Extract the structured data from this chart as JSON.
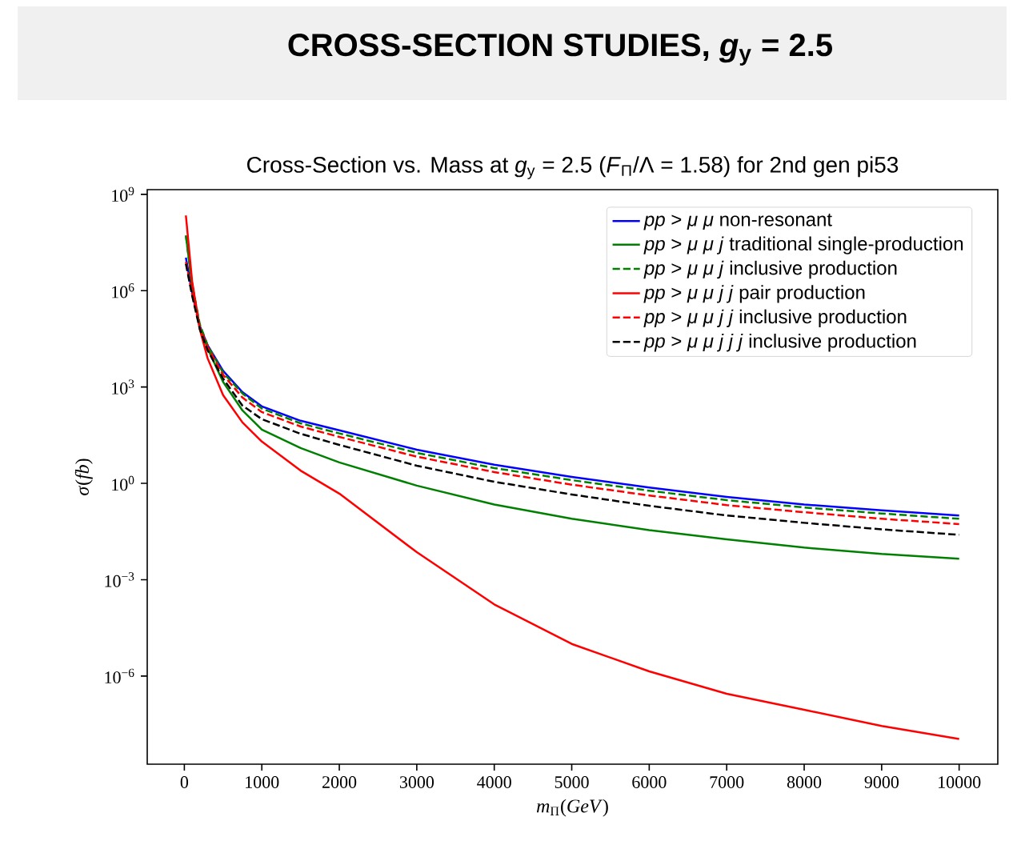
{
  "chart_data": {
    "type": "line",
    "title": "CROSS-SECTION STUDIES,   *g*$_{y}$ = 2.5",
    "subtitle": "Cross-Section vs. Mass at *g*$_{y}$ = 2.5 (*F*$_{Π}$/Λ = 1.58) for 2nd gen pi53",
    "xlabel": "*m*$_{Π}$(*GeV*)",
    "ylabel": "*σ*(*fb*)",
    "x": [
      20,
      100,
      200,
      300,
      500,
      750,
      1000,
      1500,
      2000,
      3000,
      4000,
      5000,
      6000,
      7000,
      8000,
      9000,
      10000
    ],
    "series": [
      {
        "name": "*pp* > *μ μ* non-resonant",
        "color": "#0000ff",
        "line_style": "solid",
        "values": [
          10700000.0,
          910000.0,
          79000.0,
          20000.0,
          3200.0,
          690,
          250,
          89,
          45,
          11.2,
          3.8,
          1.58,
          0.74,
          0.38,
          0.22,
          0.145,
          0.1
        ]
      },
      {
        "name": "*pp* > *μ μ j* traditional single-production",
        "color": "#008000",
        "line_style": "solid",
        "values": [
          52000000.0,
          1580000.0,
          71000.0,
          15800.0,
          1450.0,
          186,
          47,
          12.6,
          4.5,
          0.85,
          0.22,
          0.079,
          0.035,
          0.018,
          0.01,
          0.0063,
          0.0045
        ]
      },
      {
        "name": "*pp* > *μ μ j* inclusive production",
        "color": "#008000",
        "line_style": "dashed",
        "values": [
          52000000.0,
          1580000.0,
          89000.0,
          20000.0,
          2800.0,
          630,
          214,
          74,
          36,
          8.9,
          3.0,
          1.26,
          0.59,
          0.3,
          0.178,
          0.115,
          0.079
        ]
      },
      {
        "name": "*pp* > *μ μ j j* pair production",
        "color": "#ff0000",
        "line_style": "solid",
        "values": [
          220000000.0,
          2000000.0,
          63000.0,
          7900.0,
          560,
          79,
          20,
          2.5,
          0.48,
          0.0072,
          0.00017,
          1e-05,
          1.4e-06,
          2.8e-07,
          8.9e-08,
          2.8e-08,
          1.1e-08
        ]
      },
      {
        "name": "*pp* > *μ μ j j* inclusive production",
        "color": "#ff0000",
        "line_style": "dashed",
        "values": [
          7900000.0,
          790000.0,
          71000.0,
          17800.0,
          2400.0,
          470,
          166,
          59,
          28,
          6.8,
          2.24,
          0.91,
          0.42,
          0.21,
          0.126,
          0.079,
          0.054
        ]
      },
      {
        "name": "*pp* > *μ μ j j j* inclusive production",
        "color": "#000000",
        "line_style": "dashed",
        "values": [
          6800000.0,
          710000.0,
          63000.0,
          14100.0,
          1820.0,
          263,
          100,
          35,
          15.8,
          3.55,
          1.12,
          0.45,
          0.2,
          0.1,
          0.059,
          0.037,
          0.025
        ]
      }
    ],
    "xlim": [
      -479,
      10499
    ],
    "ylim": [
      1.8e-09,
      1400000000.0
    ],
    "xticks": [
      0,
      1000,
      2000,
      3000,
      4000,
      5000,
      6000,
      7000,
      8000,
      9000,
      10000
    ],
    "yticks": [
      {
        "value": 1e-06,
        "label": "10$^{−6}$"
      },
      {
        "value": 0.001,
        "label": "10$^{−3}$"
      },
      {
        "value": 1,
        "label": "10$^{0}$"
      },
      {
        "value": 1000.0,
        "label": "10$^{3}$"
      },
      {
        "value": 1000000.0,
        "label": "10$^{6}$"
      },
      {
        "value": 1000000000.0,
        "label": "10$^{9}$"
      }
    ],
    "log": "y",
    "legend": "top right"
  }
}
